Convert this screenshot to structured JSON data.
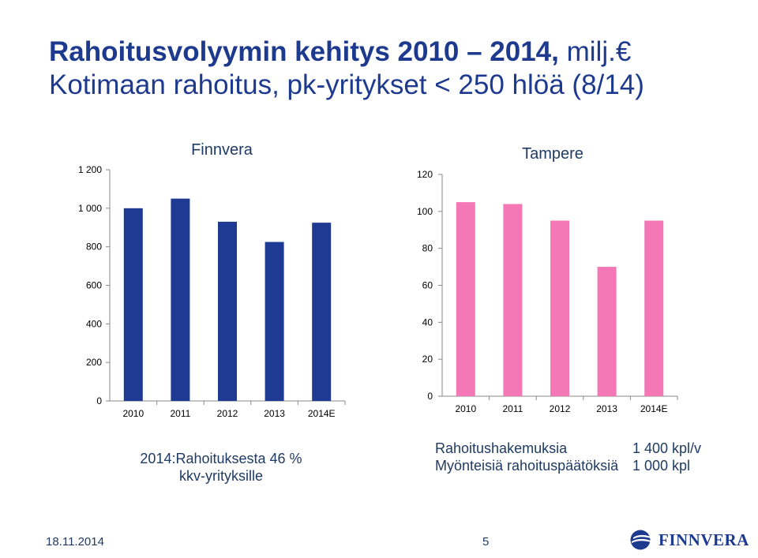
{
  "slide": {
    "title_bold": "Rahoitusvolyymin kehitys 2010 – 2014,",
    "title_thin": "milj.€",
    "subtitle": "Kotimaan rahoitus, pk-yritykset < 250 hlöä (8/14)"
  },
  "chart_data": [
    {
      "type": "bar",
      "title": "Finnvera",
      "categories": [
        "2010",
        "2011",
        "2012",
        "2013",
        "2014E"
      ],
      "values": [
        1000,
        1050,
        930,
        825,
        925
      ],
      "ylim": [
        0,
        1200
      ],
      "yticks": [
        0,
        200,
        400,
        600,
        800,
        1000,
        1200
      ],
      "ytick_labels": [
        "0",
        "200",
        "400",
        "600",
        "800",
        "1 000",
        "1 200"
      ],
      "color": "#1f3a93",
      "grid": false
    },
    {
      "type": "bar",
      "title": "Tampere",
      "categories": [
        "2010",
        "2011",
        "2012",
        "2013",
        "2014E"
      ],
      "values": [
        105,
        104,
        95,
        70,
        95
      ],
      "ylim": [
        0,
        120
      ],
      "yticks": [
        0,
        20,
        40,
        60,
        80,
        100,
        120
      ],
      "ytick_labels": [
        "0",
        "20",
        "40",
        "60",
        "80",
        "100",
        "120"
      ],
      "color": "#f478b5",
      "grid": false
    }
  ],
  "notes": {
    "left_line1": "2014:Rahoituksesta 46 %",
    "left_line2": "kkv-yrityksille",
    "right_rows": [
      {
        "label": "Rahoitushakemuksia",
        "value": "1 400 kpl/v"
      },
      {
        "label": "Myönteisiä rahoituspäätöksiä",
        "value": "1 000 kpl"
      }
    ]
  },
  "footer": {
    "date": "18.11.2014",
    "page": "5",
    "logo_text": "FINNVERA",
    "logo_color": "#1d3a8f"
  }
}
